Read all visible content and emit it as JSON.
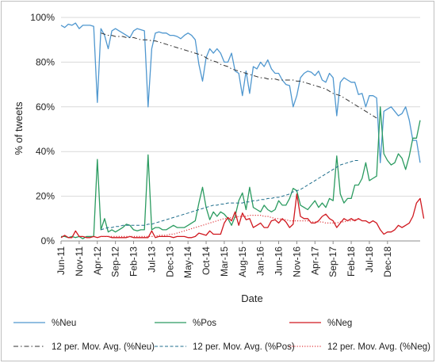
{
  "chart_data": {
    "type": "line",
    "title": "",
    "xlabel": "Date",
    "ylabel": "% of tweets",
    "ylim": [
      0,
      100
    ],
    "yticks": [
      "0%",
      "20%",
      "40%",
      "60%",
      "80%",
      "100%"
    ],
    "grid": "horizontal",
    "legend_position": "bottom",
    "x_start": "2011-06",
    "x_end": "2019-05",
    "xtick_labels": [
      "Jun-11",
      "Nov-11",
      "Apr-12",
      "Sep-12",
      "Feb-13",
      "Jul-13",
      "Dec-13",
      "May-14",
      "Oct-14",
      "Mar-15",
      "Aug-15",
      "Jan-16",
      "Jun-16",
      "Nov-16",
      "Apr-17",
      "Sep-17",
      "Feb-18",
      "Jul-18",
      "Dec-18"
    ],
    "series": [
      {
        "name": "%Neu",
        "color": "#4f97cf",
        "style": "solid",
        "values": [
          96.5,
          95.5,
          97,
          96.5,
          97.5,
          95,
          96.5,
          96.5,
          96.5,
          96,
          62,
          95,
          92,
          86,
          94,
          95,
          94,
          93,
          92,
          91,
          94,
          95,
          94.5,
          94,
          60,
          86,
          93,
          93.5,
          93,
          93,
          92,
          92,
          91.5,
          90.5,
          92,
          93,
          92,
          90,
          79,
          71.5,
          82,
          86,
          84,
          86,
          84,
          80,
          80,
          84,
          76,
          75,
          65,
          76,
          66,
          78,
          77,
          80,
          78,
          81,
          77,
          75,
          75,
          72,
          70,
          69.5,
          60,
          65,
          73,
          75,
          76,
          75.5,
          74,
          76,
          72,
          71,
          75,
          73,
          56,
          71,
          73,
          72,
          71,
          71,
          65.5,
          66,
          60,
          65,
          65,
          64,
          35,
          58,
          59,
          60,
          58,
          56,
          57,
          60,
          54,
          45,
          45,
          35
        ]
      },
      {
        "name": "%Pos",
        "color": "#2b9b60",
        "style": "solid",
        "values": [
          2,
          2,
          1.5,
          2,
          1.5,
          2,
          1,
          2,
          2,
          2,
          36.5,
          5,
          10,
          4,
          5,
          4,
          5,
          6,
          7.5,
          7,
          5,
          4.5,
          5,
          5,
          38.5,
          5,
          6,
          6,
          5,
          5,
          6,
          7,
          6,
          6,
          6,
          7,
          8,
          9,
          17,
          24,
          15,
          9.5,
          13,
          11,
          13,
          12,
          10,
          7,
          11,
          18,
          21.5,
          14,
          24,
          15,
          14,
          13,
          16,
          14,
          13,
          14,
          18,
          16,
          16,
          19,
          23.5,
          22.5,
          16,
          15,
          14,
          16,
          18,
          15,
          17,
          15,
          19,
          18,
          38,
          21,
          17,
          19,
          19,
          25,
          25,
          28,
          35,
          27,
          28,
          29,
          60,
          39,
          36,
          34,
          35,
          39,
          37,
          32,
          38,
          46,
          46,
          54
        ]
      },
      {
        "name": "%Neg",
        "color": "#d0181f",
        "style": "solid",
        "values": [
          1.5,
          2.5,
          1.5,
          1.5,
          4.5,
          2,
          2,
          1.5,
          1.5,
          2,
          1.5,
          2,
          2,
          2,
          1.5,
          1.5,
          1.5,
          1.5,
          1.5,
          2,
          1.5,
          1.5,
          1.5,
          1.5,
          1.5,
          4.5,
          1.5,
          2,
          2,
          2,
          2,
          1.5,
          2,
          2,
          2,
          1.5,
          1.5,
          2,
          3.5,
          3,
          2.5,
          4.5,
          3,
          3,
          3,
          8,
          10.5,
          9,
          13,
          7,
          12.5,
          9.5,
          10,
          6,
          7,
          8,
          6,
          6,
          9,
          9.5,
          8,
          10,
          8.5,
          6,
          7.5,
          21,
          11,
          10,
          10,
          8,
          8,
          9,
          11,
          12,
          10,
          9,
          6,
          8,
          10,
          9,
          10,
          9,
          10,
          9,
          9,
          8,
          9,
          8,
          5,
          3,
          4,
          4,
          5,
          7,
          6,
          7,
          8,
          11,
          17,
          19,
          10
        ]
      },
      {
        "name": "12 per. Mov. Avg. (%Neu)",
        "color": "#333333",
        "style": "dashdot",
        "x_start_index": 11,
        "values": [
          93,
          92.5,
          92,
          92,
          91.5,
          91.5,
          91.5,
          91,
          91,
          91,
          90.5,
          90,
          90,
          90,
          89.5,
          89.5,
          89,
          88.5,
          88,
          87.5,
          87,
          86.5,
          86,
          85.5,
          85,
          84.5,
          84,
          83.5,
          83,
          82,
          81,
          80.5,
          80,
          79,
          78.5,
          78,
          77,
          76.5,
          76,
          75.5,
          75,
          74.5,
          74,
          73.5,
          73,
          73,
          72.5,
          72.5,
          72.5,
          72,
          72,
          72,
          72,
          72,
          71.5,
          71.5,
          71,
          70.5,
          70,
          69.5,
          69,
          68.5,
          68,
          67,
          66,
          65.5,
          65,
          64,
          63,
          62,
          61,
          60,
          59,
          58,
          57,
          56,
          55
        ]
      },
      {
        "name": "12 per. Mov. Avg. (%Pos)",
        "color": "#1f6e8c",
        "style": "dashed",
        "x_start_index": 11,
        "values": [
          5,
          5.5,
          6,
          6,
          6.5,
          6.5,
          7,
          7,
          7,
          7,
          7,
          7,
          7,
          7.5,
          7.5,
          8,
          8.5,
          9,
          9.5,
          10,
          10.5,
          11,
          11.5,
          12,
          12.5,
          13,
          13.5,
          14,
          14.5,
          15,
          15.5,
          16,
          16,
          16.5,
          16.5,
          17,
          17,
          17,
          17,
          17,
          17.5,
          17.5,
          18,
          18,
          18.5,
          18.5,
          19,
          19,
          19.5,
          19.5,
          20,
          20.5,
          21,
          22,
          22.5,
          23,
          24,
          25,
          26,
          27,
          28,
          29,
          30,
          31,
          32,
          33,
          34,
          34.5,
          35,
          35.5,
          36,
          36
        ]
      },
      {
        "name": "12 per. Mov. Avg. (%Neg)",
        "color": "#e0393e",
        "style": "dotted",
        "x_start_index": 11,
        "values": [
          2,
          2,
          2,
          2,
          2,
          2,
          2,
          2,
          2,
          2,
          2,
          2,
          2,
          2,
          2,
          2,
          2.5,
          2.5,
          2.5,
          3,
          3,
          3.5,
          4,
          4.5,
          5,
          5.5,
          6,
          6.5,
          7,
          7.5,
          8,
          8.5,
          9,
          9.5,
          10,
          10,
          10.5,
          10.5,
          11,
          11,
          11,
          11.5,
          11.5,
          11.5,
          11.5,
          11,
          11,
          10.5,
          10,
          10,
          9.5,
          9.5,
          9,
          9,
          9,
          9,
          9,
          9,
          8.5,
          8.5,
          8.5,
          8.5,
          8,
          8,
          8,
          8,
          8.5,
          8.5,
          9,
          9,
          9.5,
          10
        ]
      }
    ]
  }
}
